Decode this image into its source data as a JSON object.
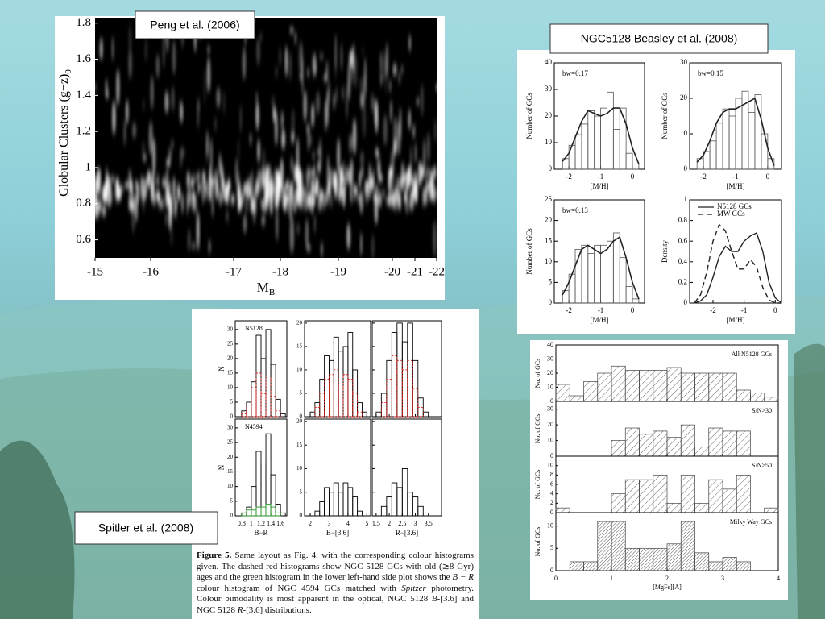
{
  "peng": {
    "title": "Peng et al. (2006)",
    "ylabel": "Globular Clusters (g−z)",
    "ylabel_sub": "0",
    "xlabel": "M",
    "xlabel_sub": "B",
    "ylim": [
      0.5,
      1.83
    ],
    "yticks": [
      0.6,
      0.8,
      1.0,
      1.2,
      1.4,
      1.6,
      1.8
    ],
    "xticks": [
      -15,
      -16,
      -17,
      -18,
      -19,
      -20,
      -21,
      -22
    ]
  },
  "beasley": {
    "title": "NGC5128 Beasley et al. (2008)",
    "panels": [
      {
        "label": "bw=0.17",
        "xlabel": "[M/H]",
        "ylabel": "Number of GCs",
        "xlim": [
          -2.46,
          0.38
        ],
        "ylim": [
          0,
          40
        ],
        "xticks": [
          -2,
          -1,
          0
        ],
        "yticks": [
          0,
          10,
          20,
          30,
          40
        ],
        "bins": [
          -2.2,
          -2,
          -1.8,
          -1.6,
          -1.4,
          -1.2,
          -1,
          -0.8,
          -0.6,
          -0.4,
          -0.2,
          0,
          0.2
        ],
        "counts": [
          4,
          9,
          13,
          17,
          22,
          20,
          23,
          29,
          15,
          23,
          6,
          2
        ],
        "curve_x": [
          -2.2,
          -2,
          -1.8,
          -1.6,
          -1.4,
          -1.2,
          -1,
          -0.8,
          -0.6,
          -0.4,
          -0.2,
          0,
          0.2
        ],
        "curve": [
          3,
          6,
          12,
          18,
          22,
          21,
          20,
          21,
          23,
          23,
          17,
          8,
          2
        ]
      },
      {
        "label": "bw=0.15",
        "xlabel": "[M/H]",
        "ylabel": "Number of GCs",
        "xlim": [
          -2.43,
          0.43
        ],
        "ylim": [
          0,
          30
        ],
        "xticks": [
          -2,
          -1,
          0
        ],
        "yticks": [
          0,
          10,
          20,
          30
        ],
        "bins": [
          -2.2,
          -2,
          -1.8,
          -1.6,
          -1.4,
          -1.2,
          -1,
          -0.8,
          -0.6,
          -0.4,
          -0.2,
          0,
          0.2
        ],
        "counts": [
          3,
          5,
          8,
          13,
          17,
          15,
          20,
          22,
          16,
          21,
          10,
          3
        ],
        "curve_x": [
          -2.2,
          -2,
          -1.8,
          -1.6,
          -1.4,
          -1.2,
          -1,
          -0.8,
          -0.6,
          -0.4,
          -0.2,
          0,
          0.2
        ],
        "curve": [
          2,
          4,
          8,
          13,
          16,
          17,
          17,
          18,
          19,
          20,
          14,
          6,
          1
        ]
      },
      {
        "label": "bw=0.13",
        "xlabel": "[M/H]",
        "ylabel": "Number of GCs",
        "xlim": [
          -2.46,
          0.38
        ],
        "ylim": [
          0,
          25
        ],
        "xticks": [
          -2,
          -1,
          0
        ],
        "yticks": [
          0,
          5,
          10,
          15,
          20,
          25
        ],
        "bins": [
          -2.2,
          -2,
          -1.8,
          -1.6,
          -1.4,
          -1.2,
          -1,
          -0.8,
          -0.6,
          -0.4,
          -0.2,
          0,
          0.2
        ],
        "counts": [
          3,
          7,
          13,
          14,
          12,
          14,
          14,
          15,
          17,
          11,
          4,
          1
        ],
        "curve_x": [
          -2.2,
          -2,
          -1.8,
          -1.6,
          -1.4,
          -1.2,
          -1,
          -0.8,
          -0.6,
          -0.4,
          -0.2,
          0,
          0.2
        ],
        "curve": [
          2,
          5,
          9,
          13,
          14,
          13,
          12,
          13,
          15,
          16,
          11,
          5,
          1
        ]
      },
      {
        "xlabel": "[M/H]",
        "ylabel": "Density",
        "xlim": [
          -2.75,
          0.2
        ],
        "ylim": [
          0,
          1
        ],
        "xticks": [
          -2,
          -1,
          0
        ],
        "yticks": [
          0,
          0.2,
          0.4,
          0.6,
          0.8,
          1
        ],
        "curve_x": [
          -2.6,
          -2.4,
          -2.2,
          -2,
          -1.8,
          -1.6,
          -1.4,
          -1.2,
          -1,
          -0.8,
          -0.6,
          -0.4,
          -0.2,
          0,
          0.2
        ],
        "series": [
          {
            "name": "N5128 GCs",
            "style": "solid",
            "values": [
              0,
              0.02,
              0.08,
              0.25,
              0.45,
              0.55,
              0.5,
              0.5,
              0.6,
              0.65,
              0.68,
              0.5,
              0.2,
              0.05,
              0
            ]
          },
          {
            "name": "MW GCs",
            "style": "dashed",
            "values": [
              0,
              0.08,
              0.3,
              0.6,
              0.76,
              0.7,
              0.5,
              0.33,
              0.33,
              0.42,
              0.35,
              0.15,
              0.03,
              0,
              0
            ]
          }
        ]
      }
    ]
  },
  "mgfe": {
    "xlabel": "[MgFe][Å]",
    "ylabel": "No. of GCs",
    "xlim": [
      0,
      4
    ],
    "xticks": [
      0,
      1,
      2,
      3,
      4
    ],
    "bins": [
      0,
      0.25,
      0.5,
      0.75,
      1,
      1.25,
      1.5,
      1.75,
      2,
      2.25,
      2.5,
      2.75,
      3,
      3.25,
      3.5,
      3.75,
      4
    ],
    "panels": [
      {
        "label": "All N5128 GCs",
        "ylim": [
          0,
          40
        ],
        "yticks": [
          0,
          10,
          20,
          30,
          40
        ],
        "counts": [
          12,
          4,
          14,
          20,
          25,
          22,
          22,
          22,
          24,
          20,
          20,
          20,
          20,
          8,
          6,
          3
        ]
      },
      {
        "label": "S/N>30",
        "ylim": [
          0,
          35
        ],
        "yticks": [
          0,
          10,
          20,
          30
        ],
        "counts": [
          0,
          0,
          0,
          0,
          10,
          18,
          14,
          16,
          12,
          20,
          6,
          18,
          16,
          16,
          0,
          0
        ]
      },
      {
        "label": "S/N>50",
        "ylim": [
          0,
          12
        ],
        "yticks": [
          0,
          2,
          4,
          6,
          8,
          10
        ],
        "counts": [
          1,
          0,
          0,
          0,
          4,
          7,
          7,
          8,
          2,
          8,
          2,
          7,
          5,
          8,
          0,
          1
        ]
      },
      {
        "label": "Milky Way GCs",
        "ylim": [
          0,
          13
        ],
        "yticks": [
          0,
          5,
          10
        ],
        "counts": [
          0,
          2,
          2,
          11,
          11,
          5,
          5,
          5,
          6,
          11,
          4,
          2,
          3,
          2,
          0,
          0
        ]
      }
    ]
  },
  "spitler": {
    "title": "Spitler et al. (2008)",
    "ylabel": "N",
    "columns": [
      {
        "xlabel": "B−R",
        "xlim": [
          0.67,
          1.73
        ],
        "xticks": [
          0.8,
          1,
          1.2,
          1.4,
          1.6
        ],
        "bins": [
          0.7,
          0.8,
          0.9,
          1,
          1.1,
          1.2,
          1.3,
          1.4,
          1.5,
          1.6,
          1.7
        ]
      },
      {
        "xlabel": "B−[3.6]",
        "xlim": [
          1.7,
          5.2
        ],
        "xticks": [
          2,
          3,
          4,
          5
        ],
        "bins": [
          2,
          2.25,
          2.5,
          2.75,
          3,
          3.25,
          3.5,
          3.75,
          4,
          4.25,
          4.5,
          4.75,
          5
        ]
      },
      {
        "xlabel": "R−[3.6]",
        "xlim": [
          1.35,
          4
        ],
        "xticks": [
          1.5,
          2,
          2.5,
          3,
          3.5
        ],
        "bins": [
          1.5,
          1.7,
          1.9,
          2.1,
          2.3,
          2.5,
          2.7,
          2.9,
          3.1,
          3.3,
          3.5
        ]
      }
    ],
    "panels": [
      {
        "label": "N5128",
        "ylim": [
          0,
          33
        ],
        "yticks": [
          0,
          5,
          10,
          15,
          20,
          25,
          30
        ],
        "series": [
          {
            "color": "#000000",
            "style": "solid",
            "values": [
              0,
              2,
              5,
              12,
              28,
              20,
              30,
              18,
              6,
              1
            ]
          },
          {
            "color": "#e0201a",
            "style": "dotted",
            "values": [
              0,
              1,
              4,
              10,
              15,
              8,
              14,
              7,
              2,
              0
            ]
          }
        ]
      },
      {
        "ylim": [
          0,
          20.5
        ],
        "yticks": [
          0,
          5,
          10,
          15,
          20
        ],
        "series": [
          {
            "color": "#000000",
            "style": "solid",
            "values": [
              1,
              3,
              8,
              13,
              12,
              17,
              14,
              15,
              18,
              10,
              3,
              1
            ]
          },
          {
            "color": "#e0201a",
            "style": "dotted",
            "values": [
              0,
              2,
              5,
              8,
              9,
              10,
              7,
              9,
              8,
              5,
              1,
              0
            ]
          }
        ]
      },
      {
        "ylim": [
          0,
          20.5
        ],
        "yticks": [
          0,
          5,
          10,
          15,
          20
        ],
        "series": [
          {
            "color": "#000000",
            "style": "solid",
            "values": [
              1,
              5,
              12,
              18,
              20,
              16,
              20,
              12,
              4,
              1
            ]
          },
          {
            "color": "#e0201a",
            "style": "dotted",
            "values": [
              0,
              3,
              8,
              13,
              12,
              10,
              12,
              6,
              2,
              0
            ]
          }
        ]
      },
      {
        "label": "N4594",
        "ylim": [
          0,
          33
        ],
        "yticks": [
          0,
          5,
          10,
          15,
          20,
          25,
          30
        ],
        "series": [
          {
            "color": "#000000",
            "style": "solid",
            "values": [
              0,
              1,
              3,
              10,
              22,
              18,
              28,
              14,
              4,
              1
            ]
          },
          {
            "color": "#2a9a2a",
            "style": "solid",
            "values": [
              0,
              1,
              2,
              2,
              3,
              3,
              4,
              3,
              1,
              0
            ]
          }
        ]
      },
      {
        "ylim": [
          0,
          20.5
        ],
        "yticks": [
          0,
          5,
          10,
          15,
          20
        ],
        "series": [
          {
            "color": "#000000",
            "style": "solid",
            "values": [
              0,
              1,
              3,
              6,
              5,
              7,
              5,
              7,
              6,
              4,
              1,
              0
            ]
          }
        ]
      },
      {
        "ylim": [
          0,
          20.5
        ],
        "yticks": [
          0,
          5,
          10,
          15,
          20
        ],
        "series": [
          {
            "color": "#000000",
            "style": "solid",
            "values": [
              0,
              2,
              4,
              7,
              6,
              10,
              5,
              4,
              2,
              0
            ]
          }
        ]
      }
    ],
    "caption": {
      "label": "Figure 5.",
      "parts": [
        "Same layout as Fig. 4, with the corresponding colour histograms given. The dashed red histograms show NGC 5128 GCs with old (≳8 Gyr) ages and the green histogram in the lower left-hand side plot shows the ",
        "B − R",
        " colour histogram of NGC 4594 GCs matched with ",
        "Spitzer",
        " photometry. Colour bimodality is most apparent in the optical, NGC 5128 ",
        "B",
        "-[3.6] and NGC 5128 ",
        "R",
        "-[3.6] distributions."
      ]
    }
  }
}
